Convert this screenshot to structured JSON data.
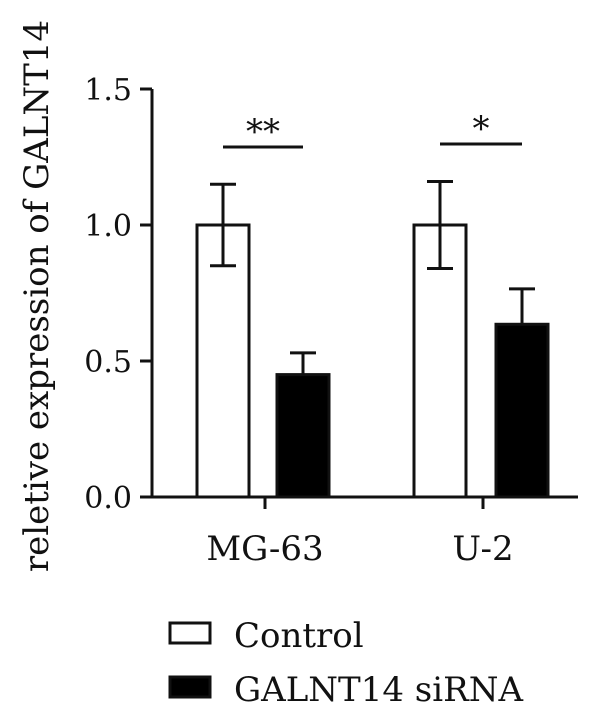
{
  "chart_data": {
    "type": "bar",
    "ylabel": "reletive expression of GALNT14",
    "ylim": [
      0,
      1.5
    ],
    "yticks": [
      "0.0",
      "0.5",
      "1.0",
      "1.5"
    ],
    "ytick_values": [
      0,
      0.5,
      1.0,
      1.5
    ],
    "categories": [
      "MG-63",
      "U-2"
    ],
    "series": [
      {
        "name": "Control",
        "values": [
          1.0,
          1.0
        ],
        "errors": [
          0.15,
          0.16
        ],
        "fill": "#ffffff"
      },
      {
        "name": "GALNT14 siRNA",
        "values": [
          0.45,
          0.635
        ],
        "errors": [
          0.08,
          0.13
        ],
        "fill": "#000000"
      }
    ],
    "significance": [
      "**",
      "*"
    ],
    "legend_position": "bottom",
    "grid": false
  }
}
